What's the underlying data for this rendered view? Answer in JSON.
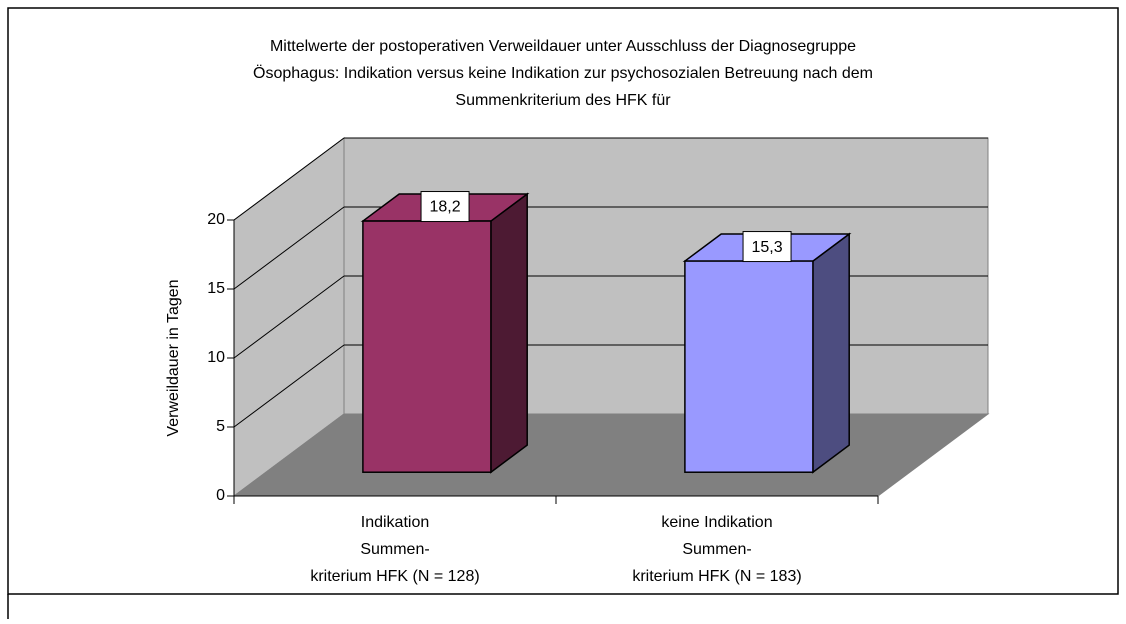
{
  "chart_data": {
    "type": "bar3d",
    "title": [
      "Mittelwerte der postoperativen Verweildauer unter Ausschluss der Diagnosegruppe",
      "Ösophagus: Indikation versus keine  Indikation zur psychosozialen Betreuung nach dem",
      "Summenkriterium des HFK für"
    ],
    "y_label": "Verweildauer in Tagen",
    "categories": [
      [
        "Indikation",
        "Summen-",
        "kriterium HFK (N = 128)"
      ],
      [
        "keine Indikation",
        "Summen-",
        "kriterium HFK (N = 183)"
      ]
    ],
    "values": [
      18.2,
      15.3
    ],
    "value_labels": [
      "18,2",
      "15,3"
    ],
    "colors": [
      "#993366",
      "#9999ff"
    ],
    "side_colors": [
      "#4d1a33",
      "#4d4d80"
    ],
    "ylim": [
      0,
      20
    ],
    "yticks": [
      0,
      5,
      10,
      15,
      20
    ],
    "grid": true
  }
}
